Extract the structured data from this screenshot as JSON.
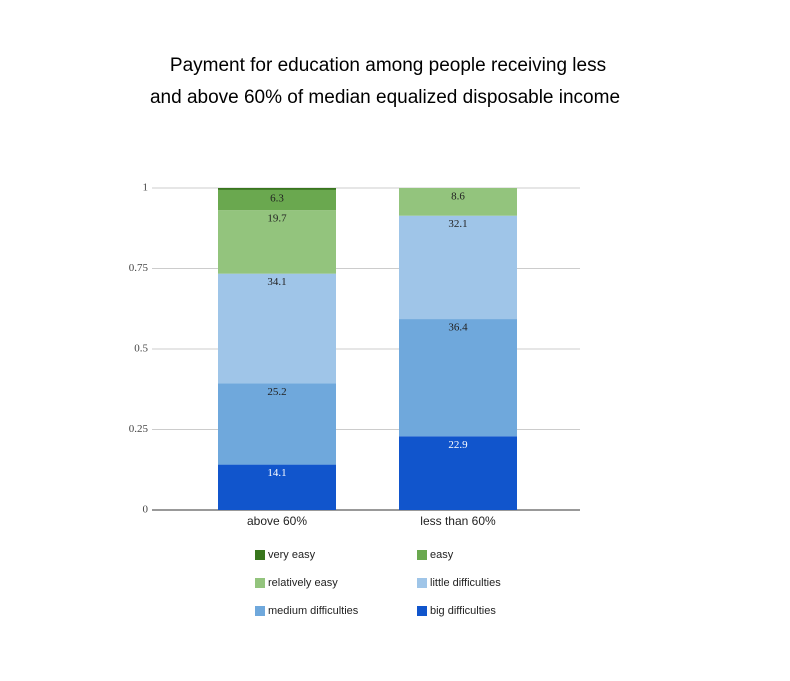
{
  "chart_data": {
    "type": "stacked_bar",
    "title": [
      "Payment for education among people receiving less",
      "and above 60% of median equalized disposable income"
    ],
    "categories": [
      "above 60%",
      "less than 60%"
    ],
    "series": [
      {
        "name": "big difficulties",
        "color": "#1155cc",
        "values": [
          0.141,
          0.229
        ],
        "value_labels": [
          "14.1",
          "22.9"
        ]
      },
      {
        "name": "medium difficulties",
        "color": "#6fa8dc",
        "values": [
          0.252,
          0.364
        ],
        "value_labels": [
          "25.2",
          "36.4"
        ]
      },
      {
        "name": "little difficulties",
        "color": "#9fc5e8",
        "values": [
          0.341,
          0.321
        ],
        "value_labels": [
          "34.1",
          "32.1"
        ]
      },
      {
        "name": "relatively easy",
        "color": "#93c47d",
        "values": [
          0.197,
          0.086
        ],
        "value_labels": [
          "19.7",
          "8.6"
        ]
      },
      {
        "name": "easy",
        "color": "#6aa84f",
        "values": [
          0.063,
          0
        ],
        "value_labels": [
          "6.3",
          null
        ]
      },
      {
        "name": "very easy",
        "color": "#38761d",
        "values": [
          0.006,
          0
        ],
        "value_labels": [
          null,
          null
        ]
      }
    ],
    "ylim": [
      0,
      1
    ],
    "yticks": [
      0,
      0.25,
      0.5,
      0.75,
      1
    ],
    "grid": true
  }
}
